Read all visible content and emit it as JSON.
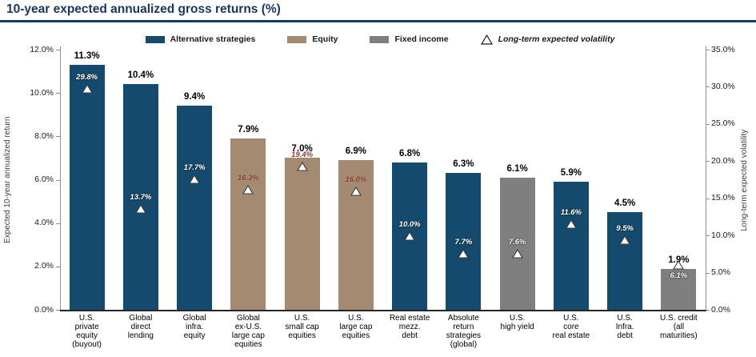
{
  "page": {
    "title": "10-year expected annualized gross returns (%)"
  },
  "colors": {
    "alternative": "#134a6d",
    "equity": "#a38a70",
    "fixed_income": "#7f7f7f",
    "title": "#17375e",
    "title_rule": "#17375e",
    "volatility_label_on_equity": "#8a3c2c",
    "volatility_label_on_dark": "#ffffff",
    "axis_line": "#909090",
    "baseline": "#262626"
  },
  "legend": {
    "series": [
      {
        "label": "Alternative strategies",
        "group": "alternative"
      },
      {
        "label": "Equity",
        "group": "equity"
      },
      {
        "label": "Fixed income",
        "group": "fixed_income"
      }
    ],
    "volatility": {
      "label": "Long-term expected volatility",
      "icon": "triangle-up-open"
    }
  },
  "chart_data": {
    "type": "bar",
    "title": "10-year expected annualized gross returns (%)",
    "grid": false,
    "legend_position": "top-center",
    "left_axis": {
      "label": "Expected 10-year annualized return",
      "min": 0,
      "max": 12,
      "tick_step": 2,
      "tick_labels": [
        "0.0%",
        "2.0%",
        "4.0%",
        "6.0%",
        "8.0%",
        "10.0%",
        "12.0%"
      ]
    },
    "right_axis": {
      "label": "Long-term expected volatility",
      "min": 0,
      "max": 35,
      "tick_step": 5,
      "tick_labels": [
        "0.0%",
        "5.0%",
        "10.0%",
        "15.0%",
        "20.0%",
        "25.0%",
        "30.0%",
        "35.0%"
      ]
    },
    "points": [
      {
        "category_lines": [
          "U.S.",
          "private",
          "equity",
          "(buyout)"
        ],
        "group": "alternative",
        "return_pct": 11.3,
        "return_label": "11.3%",
        "volatility_pct": 29.8,
        "volatility_label": "29.8%"
      },
      {
        "category_lines": [
          "Global",
          "direct",
          "lending"
        ],
        "group": "alternative",
        "return_pct": 10.4,
        "return_label": "10.4%",
        "volatility_pct": 13.7,
        "volatility_label": "13.7%"
      },
      {
        "category_lines": [
          "Global",
          "infra.",
          "equity"
        ],
        "group": "alternative",
        "return_pct": 9.4,
        "return_label": "9.4%",
        "volatility_pct": 17.7,
        "volatility_label": "17.7%"
      },
      {
        "category_lines": [
          "Global",
          "ex-U.S.",
          "large cap",
          "equities"
        ],
        "group": "equity",
        "return_pct": 7.9,
        "return_label": "7.9%",
        "volatility_pct": 16.3,
        "volatility_label": "16.3%"
      },
      {
        "category_lines": [
          "U.S.",
          "small cap",
          "equities"
        ],
        "group": "equity",
        "return_pct": 7.0,
        "return_label": "7.0%",
        "volatility_pct": 19.4,
        "volatility_label": "19.4%"
      },
      {
        "category_lines": [
          "U.S.",
          "large cap",
          "equities"
        ],
        "group": "equity",
        "return_pct": 6.9,
        "return_label": "6.9%",
        "volatility_pct": 16.0,
        "volatility_label": "16.0%"
      },
      {
        "category_lines": [
          "Real estate",
          "mezz.",
          "debt"
        ],
        "group": "alternative",
        "return_pct": 6.8,
        "return_label": "6.8%",
        "volatility_pct": 10.0,
        "volatility_label": "10.0%"
      },
      {
        "category_lines": [
          "Absolute",
          "return",
          "strategies",
          "(global)"
        ],
        "group": "alternative",
        "return_pct": 6.3,
        "return_label": "6.3%",
        "volatility_pct": 7.7,
        "volatility_label": "7.7%"
      },
      {
        "category_lines": [
          "U.S.",
          "high yield"
        ],
        "group": "fixed_income",
        "return_pct": 6.1,
        "return_label": "6.1%",
        "volatility_pct": 7.6,
        "volatility_label": "7.6%"
      },
      {
        "category_lines": [
          "U.S.",
          "core",
          "real estate"
        ],
        "group": "alternative",
        "return_pct": 5.9,
        "return_label": "5.9%",
        "volatility_pct": 11.6,
        "volatility_label": "11.6%"
      },
      {
        "category_lines": [
          "U.S.",
          "Infra.",
          "debt"
        ],
        "group": "alternative",
        "return_pct": 4.5,
        "return_label": "4.5%",
        "volatility_pct": 9.5,
        "volatility_label": "9.5%"
      },
      {
        "category_lines": [
          "U.S. credit",
          "(all",
          "maturities)"
        ],
        "group": "fixed_income",
        "return_pct": 1.9,
        "return_label": "1.9%",
        "volatility_pct": 6.1,
        "volatility_label": "6.1%",
        "volatility_label_below_marker": true
      }
    ]
  }
}
